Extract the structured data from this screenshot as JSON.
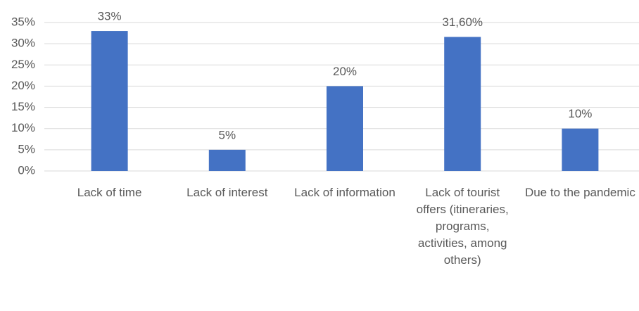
{
  "chart_data": {
    "type": "bar",
    "categories": [
      "Lack of time",
      "Lack of interest",
      "Lack of information",
      "Lack of tourist offers (itineraries, programs, activities, among others)",
      "Due to the pandemic"
    ],
    "values": [
      33,
      5,
      20,
      31.6,
      10
    ],
    "value_labels": [
      "33%",
      "5%",
      "20%",
      "31,60%",
      "10%"
    ],
    "color": "#4472c4",
    "ylim": [
      0,
      35
    ],
    "yticks": [
      {
        "value": 0,
        "label": "0%"
      },
      {
        "value": 5,
        "label": "5%"
      },
      {
        "value": 10,
        "label": "10%"
      },
      {
        "value": 15,
        "label": "15%"
      },
      {
        "value": 20,
        "label": "20%"
      },
      {
        "value": 25,
        "label": "25%"
      },
      {
        "value": 30,
        "label": "30%"
      },
      {
        "value": 35,
        "label": "35%"
      }
    ],
    "grid": true
  }
}
